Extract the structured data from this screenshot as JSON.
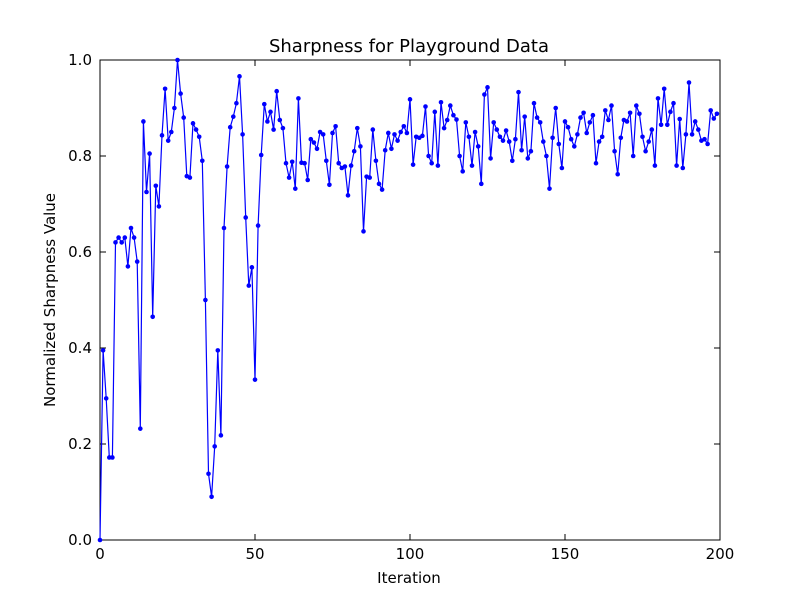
{
  "chart_data": {
    "type": "line",
    "title": "Sharpness for Playground Data",
    "xlabel": "Iteration",
    "ylabel": "Normalized Sharpness Value",
    "xlim": [
      0,
      200
    ],
    "ylim": [
      0.0,
      1.0
    ],
    "xticks": [
      0,
      50,
      100,
      150,
      200
    ],
    "xtick_labels": [
      "0",
      "50",
      "100",
      "150",
      "200"
    ],
    "yticks": [
      0.0,
      0.2,
      0.4,
      0.6,
      0.8,
      1.0
    ],
    "ytick_labels": [
      "0.0",
      "0.2",
      "0.4",
      "0.6",
      "0.8",
      "1.0"
    ],
    "grid": false,
    "legend": "none",
    "series": [
      {
        "color": "#0000ff",
        "marker": "circle",
        "x": [
          0,
          1,
          2,
          3,
          4,
          5,
          6,
          7,
          8,
          9,
          10,
          11,
          12,
          13,
          14,
          15,
          16,
          17,
          18,
          19,
          20,
          21,
          22,
          23,
          24,
          25,
          26,
          27,
          28,
          29,
          30,
          31,
          32,
          33,
          34,
          35,
          36,
          37,
          38,
          39,
          40,
          41,
          42,
          43,
          44,
          45,
          46,
          47,
          48,
          49,
          50,
          51,
          52,
          53,
          54,
          55,
          56,
          57,
          58,
          59,
          60,
          61,
          62,
          63,
          64,
          65,
          66,
          67,
          68,
          69,
          70,
          71,
          72,
          73,
          74,
          75,
          76,
          77,
          78,
          79,
          80,
          81,
          82,
          83,
          84,
          85,
          86,
          87,
          88,
          89,
          90,
          91,
          92,
          93,
          94,
          95,
          96,
          97,
          98,
          99,
          100,
          101,
          102,
          103,
          104,
          105,
          106,
          107,
          108,
          109,
          110,
          111,
          112,
          113,
          114,
          115,
          116,
          117,
          118,
          119,
          120,
          121,
          122,
          123,
          124,
          125,
          126,
          127,
          128,
          129,
          130,
          131,
          132,
          133,
          134,
          135,
          136,
          137,
          138,
          139,
          140,
          141,
          142,
          143,
          144,
          145,
          146,
          147,
          148,
          149,
          150,
          151,
          152,
          153,
          154,
          155,
          156,
          157,
          158,
          159,
          160,
          161,
          162,
          163,
          164,
          165,
          166,
          167,
          168,
          169,
          170,
          171,
          172,
          173,
          174,
          175,
          176,
          177,
          178,
          179,
          180,
          181,
          182,
          183,
          184,
          185,
          186,
          187,
          188,
          189,
          190,
          191,
          192,
          193,
          194,
          195,
          196,
          197,
          198,
          199
        ],
        "y": [
          0.0,
          0.395,
          0.295,
          0.172,
          0.172,
          0.62,
          0.63,
          0.62,
          0.63,
          0.57,
          0.65,
          0.63,
          0.58,
          0.232,
          0.872,
          0.725,
          0.805,
          0.465,
          0.738,
          0.695,
          0.843,
          0.94,
          0.832,
          0.85,
          0.9,
          1.0,
          0.93,
          0.88,
          0.758,
          0.755,
          0.868,
          0.855,
          0.84,
          0.79,
          0.5,
          0.138,
          0.09,
          0.195,
          0.395,
          0.218,
          0.65,
          0.778,
          0.86,
          0.882,
          0.91,
          0.966,
          0.845,
          0.672,
          0.53,
          0.568,
          0.334,
          0.655,
          0.802,
          0.908,
          0.872,
          0.892,
          0.855,
          0.935,
          0.875,
          0.858,
          0.785,
          0.755,
          0.788,
          0.732,
          0.92,
          0.786,
          0.785,
          0.75,
          0.835,
          0.828,
          0.815,
          0.85,
          0.845,
          0.79,
          0.74,
          0.848,
          0.862,
          0.785,
          0.775,
          0.778,
          0.718,
          0.78,
          0.81,
          0.858,
          0.82,
          0.643,
          0.757,
          0.755,
          0.855,
          0.79,
          0.742,
          0.73,
          0.812,
          0.848,
          0.815,
          0.845,
          0.832,
          0.85,
          0.862,
          0.848,
          0.918,
          0.782,
          0.84,
          0.838,
          0.842,
          0.903,
          0.8,
          0.785,
          0.892,
          0.78,
          0.912,
          0.858,
          0.875,
          0.905,
          0.885,
          0.876,
          0.8,
          0.768,
          0.87,
          0.84,
          0.78,
          0.85,
          0.82,
          0.742,
          0.928,
          0.943,
          0.795,
          0.87,
          0.855,
          0.84,
          0.832,
          0.853,
          0.83,
          0.79,
          0.835,
          0.933,
          0.812,
          0.882,
          0.795,
          0.81,
          0.91,
          0.88,
          0.87,
          0.83,
          0.8,
          0.732,
          0.838,
          0.9,
          0.825,
          0.775,
          0.872,
          0.86,
          0.835,
          0.82,
          0.845,
          0.88,
          0.89,
          0.848,
          0.87,
          0.885,
          0.785,
          0.83,
          0.84,
          0.895,
          0.875,
          0.905,
          0.81,
          0.762,
          0.838,
          0.875,
          0.872,
          0.89,
          0.8,
          0.905,
          0.888,
          0.84,
          0.81,
          0.83,
          0.855,
          0.78,
          0.92,
          0.865,
          0.94,
          0.865,
          0.892,
          0.91,
          0.78,
          0.877,
          0.775,
          0.845,
          0.953,
          0.845,
          0.872,
          0.855,
          0.832,
          0.835,
          0.825,
          0.895,
          0.878,
          0.888
        ]
      }
    ]
  }
}
